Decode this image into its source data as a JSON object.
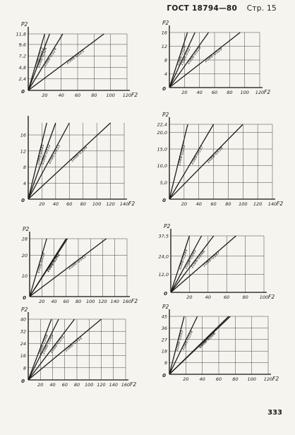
{
  "header": {
    "standard": "ГОСТ 18794—80",
    "page_label": "Стр. 15"
  },
  "page_number": "333",
  "chart_data": [
    {
      "type": "line",
      "ylabel": "P2",
      "xlabel": "F2",
      "xlim": [
        0,
        120
      ],
      "ylim": [
        0,
        11.8
      ],
      "xticks": [
        "20",
        "40",
        "60",
        "80",
        "100",
        "120"
      ],
      "yticks": [
        {
          "v": 2.4,
          "t": "2,4"
        },
        {
          "v": 4.8,
          "t": "4,8"
        },
        {
          "v": 7.2,
          "t": "7,2"
        },
        {
          "v": 9.6,
          "t": "9,6"
        },
        {
          "v": 11.8,
          "t": "11,8"
        }
      ],
      "origin_label": "0",
      "series": [
        {
          "name": "1086-0323",
          "x": [
            0,
            20
          ],
          "y": [
            0,
            11.8
          ]
        },
        {
          "name": "1086-0324",
          "x": [
            0,
            26
          ],
          "y": [
            0,
            11.8
          ]
        },
        {
          "name": "1086-0324",
          "x": [
            0,
            42
          ],
          "y": [
            0,
            11.8
          ]
        },
        {
          "name": "1086-0325",
          "x": [
            0,
            92
          ],
          "y": [
            0,
            11.8
          ]
        }
      ]
    },
    {
      "type": "line",
      "ylabel": "P2",
      "xlabel": "F2",
      "xlim": [
        0,
        120
      ],
      "ylim": [
        0,
        16
      ],
      "xticks": [
        "20",
        "40",
        "60",
        "80",
        "100",
        "120"
      ],
      "yticks": [
        {
          "v": 4,
          "t": "4"
        },
        {
          "v": 8,
          "t": "8"
        },
        {
          "v": 12,
          "t": "12"
        },
        {
          "v": 16,
          "t": "16"
        }
      ],
      "origin_label": "0",
      "series": [
        {
          "name": "1086-0326",
          "x": [
            0,
            24
          ],
          "y": [
            0,
            16
          ]
        },
        {
          "name": "1086-0327",
          "x": [
            0,
            34
          ],
          "y": [
            0,
            16
          ]
        },
        {
          "name": "1086-0328",
          "x": [
            0,
            52
          ],
          "y": [
            0,
            16
          ]
        },
        {
          "name": "1086-0329",
          "x": [
            0,
            94
          ],
          "y": [
            0,
            16
          ]
        }
      ]
    },
    {
      "type": "line",
      "ylabel": "",
      "xlabel": "F2",
      "xlim": [
        0,
        140
      ],
      "ylim": [
        0,
        19
      ],
      "xticks": [
        "20",
        "40",
        "60",
        "80",
        "100",
        "120",
        "140"
      ],
      "yticks": [
        {
          "v": 4,
          "t": "4"
        },
        {
          "v": 8,
          "t": "8"
        },
        {
          "v": 12,
          "t": "12"
        },
        {
          "v": 16,
          "t": "16"
        }
      ],
      "origin_label": "0",
      "series": [
        {
          "name": "1086-0331",
          "x": [
            0,
            27
          ],
          "y": [
            0,
            19
          ]
        },
        {
          "name": "1086-0332",
          "x": [
            0,
            40
          ],
          "y": [
            0,
            19
          ]
        },
        {
          "name": "1086-0333",
          "x": [
            0,
            60
          ],
          "y": [
            0,
            19
          ]
        },
        {
          "name": "1086-0334",
          "x": [
            0,
            120
          ],
          "y": [
            0,
            19
          ]
        }
      ]
    },
    {
      "type": "line",
      "ylabel": "P2",
      "xlabel": "F2",
      "xlim": [
        0,
        140
      ],
      "ylim": [
        0,
        22.4
      ],
      "xticks": [
        "20",
        "40",
        "60",
        "80",
        "100",
        "120",
        "140"
      ],
      "yticks": [
        {
          "v": 5,
          "t": "5,0"
        },
        {
          "v": 10,
          "t": "10,0"
        },
        {
          "v": 15,
          "t": "15,0"
        },
        {
          "v": 20,
          "t": "20,0"
        },
        {
          "v": 22.4,
          "t": "22,4"
        }
      ],
      "origin_label": "0",
      "series": [
        {
          "name": "1086-0335",
          "x": [
            0,
            25
          ],
          "y": [
            0,
            22.4
          ]
        },
        {
          "name": "1086-0337",
          "x": [
            0,
            60
          ],
          "y": [
            0,
            22.4
          ]
        },
        {
          "name": "1086-0338",
          "x": [
            0,
            100
          ],
          "y": [
            0,
            22.4
          ]
        }
      ]
    },
    {
      "type": "line",
      "ylabel": "P2",
      "xlabel": "F2",
      "xlim": [
        0,
        160
      ],
      "ylim": [
        0,
        28
      ],
      "xticks": [
        "20",
        "40",
        "60",
        "80",
        "100",
        "120",
        "140",
        "160"
      ],
      "yticks": [
        {
          "v": 10,
          "t": "10"
        },
        {
          "v": 20,
          "t": "20"
        },
        {
          "v": 28,
          "t": "28"
        }
      ],
      "origin_label": "0",
      "series": [
        {
          "name": "1086-0339",
          "x": [
            0,
            28
          ],
          "y": [
            0,
            28
          ]
        },
        {
          "name": "1086-0341",
          "x": [
            0,
            60
          ],
          "y": [
            0,
            28
          ]
        },
        {
          "name": "1086-0342",
          "x": [
            0,
            62
          ],
          "y": [
            0,
            28
          ]
        },
        {
          "name": "1086-0343",
          "x": [
            0,
            126
          ],
          "y": [
            0,
            28
          ]
        }
      ]
    },
    {
      "type": "line",
      "ylabel": "P2",
      "xlabel": "F2",
      "xlim": [
        0,
        100
      ],
      "ylim": [
        0,
        37.5
      ],
      "xticks": [
        "20",
        "40",
        "60",
        "80",
        "100"
      ],
      "yticks": [
        {
          "v": 12,
          "t": "12,0"
        },
        {
          "v": 24,
          "t": "24,0"
        },
        {
          "v": 37.5,
          "t": "37,5"
        }
      ],
      "origin_label": "0",
      "series": [
        {
          "name": "1086-0344",
          "x": [
            0,
            20
          ],
          "y": [
            0,
            37.5
          ]
        },
        {
          "name": "1086-0345",
          "x": [
            0,
            33
          ],
          "y": [
            0,
            37.5
          ]
        },
        {
          "name": "1086-0346",
          "x": [
            0,
            46
          ],
          "y": [
            0,
            37.5
          ]
        },
        {
          "name": "1086-0347",
          "x": [
            0,
            70
          ],
          "y": [
            0,
            37.5
          ]
        }
      ]
    },
    {
      "type": "line",
      "ylabel": "P2",
      "xlabel": "F2",
      "xlim": [
        0,
        160
      ],
      "ylim": [
        0,
        40
      ],
      "xticks": [
        "20",
        "40",
        "60",
        "80",
        "100",
        "120",
        "140",
        "160"
      ],
      "yticks": [
        {
          "v": 8,
          "t": "8"
        },
        {
          "v": 16,
          "t": "16"
        },
        {
          "v": 24,
          "t": "24"
        },
        {
          "v": 32,
          "t": "32"
        },
        {
          "v": 40,
          "t": "40"
        }
      ],
      "origin_label": "0",
      "series": [
        {
          "name": "1086-0348",
          "x": [
            0,
            38
          ],
          "y": [
            0,
            40
          ]
        },
        {
          "name": "1086-0349",
          "x": [
            0,
            50
          ],
          "y": [
            0,
            40
          ]
        },
        {
          "name": "1086-0351",
          "x": [
            0,
            76
          ],
          "y": [
            0,
            40
          ]
        },
        {
          "name": "1086-0352",
          "x": [
            0,
            120
          ],
          "y": [
            0,
            40
          ]
        }
      ]
    },
    {
      "type": "line",
      "ylabel": "P2",
      "xlabel": "F2",
      "xlim": [
        0,
        120
      ],
      "ylim": [
        0,
        45
      ],
      "xticks": [
        "20",
        "40",
        "60",
        "80",
        "100",
        "120"
      ],
      "yticks": [
        {
          "v": 9,
          "t": "9"
        },
        {
          "v": 18,
          "t": "18"
        },
        {
          "v": 27,
          "t": "27"
        },
        {
          "v": 36,
          "t": "36"
        },
        {
          "v": 45,
          "t": "45"
        }
      ],
      "origin_label": "0",
      "series": [
        {
          "name": "1086-0353",
          "x": [
            0,
            18
          ],
          "y": [
            0,
            45
          ]
        },
        {
          "name": "1086-0354",
          "x": [
            0,
            34
          ],
          "y": [
            0,
            45
          ]
        },
        {
          "name": "1086-0355",
          "x": [
            0,
            72
          ],
          "y": [
            0,
            45
          ]
        },
        {
          "name": "1086-0356",
          "x": [
            0,
            74
          ],
          "y": [
            0,
            45
          ]
        }
      ]
    }
  ]
}
